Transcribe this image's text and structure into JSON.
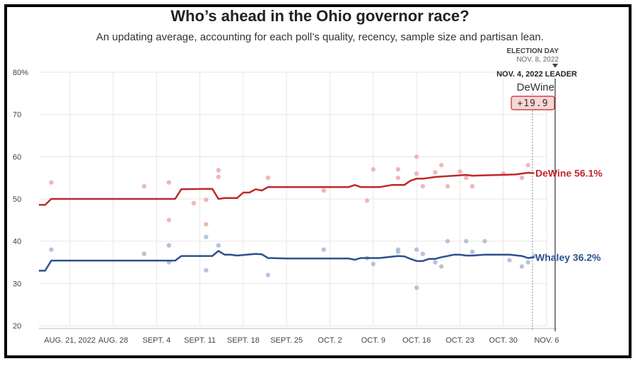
{
  "header": {
    "title": "Who’s ahead in the Ohio governor race?",
    "subtitle": "An updating average, accounting for each poll’s quality, recency, sample size and partisan lean."
  },
  "chart_data": {
    "type": "line",
    "title": "Who’s ahead in the Ohio governor race?",
    "subtitle": "An updating average, accounting for each poll’s quality, recency, sample size and partisan lean.",
    "x_unit": "days since Aug 16, 2022",
    "xlim": [
      0,
      82
    ],
    "ylim": [
      20,
      80
    ],
    "y_ticks": [
      20,
      30,
      40,
      50,
      60,
      70,
      80
    ],
    "y_tick_labels": [
      "20",
      "30",
      "40",
      "50",
      "60",
      "70",
      "80%"
    ],
    "x_ticks": [
      {
        "day": 5,
        "label": "AUG. 21, 2022"
      },
      {
        "day": 12,
        "label": "AUG. 28"
      },
      {
        "day": 19,
        "label": "SEPT. 4"
      },
      {
        "day": 26,
        "label": "SEPT. 11"
      },
      {
        "day": 33,
        "label": "SEPT. 18"
      },
      {
        "day": 40,
        "label": "SEPT. 25"
      },
      {
        "day": 47,
        "label": "OCT. 2"
      },
      {
        "day": 54,
        "label": "OCT. 9"
      },
      {
        "day": 61,
        "label": "OCT. 16"
      },
      {
        "day": 68,
        "label": "OCT. 23"
      },
      {
        "day": 75,
        "label": "OCT. 30"
      },
      {
        "day": 82,
        "label": "NOV. 6"
      }
    ],
    "grid": true,
    "election_day": {
      "day": 84,
      "title": "ELECTION DAY",
      "date": "NOV. 8, 2022"
    },
    "leader_box": {
      "day": 80,
      "heading": "NOV. 4, 2022 LEADER",
      "name": "DeWine",
      "margin": "+19.9"
    },
    "series": [
      {
        "name": "DeWine",
        "end_label": "DeWine 56.1%",
        "color": "#c0272d",
        "dot_color": "#eeaaaa",
        "x": [
          0,
          1,
          2,
          22,
          23,
          28,
          29,
          30,
          32,
          33,
          34,
          35,
          36,
          37,
          38,
          40,
          50,
          51,
          52,
          55,
          57,
          58,
          59,
          60,
          61,
          62,
          63,
          64,
          65,
          67,
          69,
          70,
          72,
          75,
          77,
          79,
          80
        ],
        "values": [
          48.6,
          48.6,
          50.0,
          50.0,
          52.3,
          52.4,
          50.0,
          50.2,
          50.2,
          51.5,
          51.5,
          52.3,
          52.0,
          52.8,
          52.8,
          52.8,
          52.8,
          53.3,
          52.8,
          52.8,
          53.3,
          53.3,
          53.3,
          54.3,
          54.8,
          54.8,
          55.0,
          55.2,
          55.3,
          55.5,
          55.7,
          55.5,
          55.6,
          55.7,
          55.8,
          56.2,
          56.1
        ]
      },
      {
        "name": "Whaley",
        "end_label": "Whaley 36.2%",
        "color": "#2e4f8f",
        "dot_color": "#aab8d8",
        "x": [
          0,
          1,
          2,
          22,
          23,
          28,
          29,
          30,
          31,
          32,
          35,
          36,
          37,
          40,
          50,
          51,
          52,
          55,
          58,
          59,
          60,
          61,
          62,
          63,
          64,
          65,
          66,
          67,
          68,
          69,
          70,
          72,
          76,
          78,
          79,
          80
        ],
        "values": [
          33.0,
          33.0,
          35.4,
          35.4,
          36.5,
          36.5,
          37.7,
          36.8,
          36.8,
          36.6,
          37.0,
          36.9,
          36.0,
          35.9,
          35.9,
          35.6,
          36.0,
          36.0,
          36.5,
          36.4,
          35.8,
          35.3,
          35.3,
          35.8,
          35.8,
          36.2,
          36.5,
          36.8,
          36.8,
          36.6,
          36.6,
          36.8,
          36.8,
          36.5,
          36.0,
          36.2
        ]
      }
    ],
    "polls": {
      "DeWine": [
        [
          2,
          53.9
        ],
        [
          17,
          53.0
        ],
        [
          21,
          53.9
        ],
        [
          21,
          45.0
        ],
        [
          25,
          49.0
        ],
        [
          27,
          44.0
        ],
        [
          27,
          49.8
        ],
        [
          29,
          56.8
        ],
        [
          29,
          55.2
        ],
        [
          37,
          55.0
        ],
        [
          46,
          52.0
        ],
        [
          53,
          49.6
        ],
        [
          54,
          57.0
        ],
        [
          58,
          57.0
        ],
        [
          58,
          55.0
        ],
        [
          61,
          60.0
        ],
        [
          61,
          56.0
        ],
        [
          62,
          53.0
        ],
        [
          64,
          56.3
        ],
        [
          65,
          58.0
        ],
        [
          66,
          53.0
        ],
        [
          68,
          56.5
        ],
        [
          69,
          55.0
        ],
        [
          70,
          53.0
        ],
        [
          75,
          56.0
        ],
        [
          78,
          55.0
        ],
        [
          79,
          58.0
        ]
      ],
      "Whaley": [
        [
          2,
          38.0
        ],
        [
          17,
          37.0
        ],
        [
          21,
          39.0
        ],
        [
          21,
          35.0
        ],
        [
          27,
          41.0
        ],
        [
          27,
          33.1
        ],
        [
          29,
          39.0
        ],
        [
          37,
          32.0
        ],
        [
          46,
          38.0
        ],
        [
          53,
          36.0
        ],
        [
          54,
          34.6
        ],
        [
          58,
          38.0
        ],
        [
          58,
          37.5
        ],
        [
          61,
          38.0
        ],
        [
          61,
          29.0
        ],
        [
          62,
          37.0
        ],
        [
          64,
          35.0
        ],
        [
          65,
          34.0
        ],
        [
          66,
          40.0
        ],
        [
          69,
          40.0
        ],
        [
          70,
          37.5
        ],
        [
          72,
          40.0
        ],
        [
          76,
          35.5
        ],
        [
          78,
          34.0
        ],
        [
          79,
          35.0
        ],
        [
          80,
          36.5
        ]
      ]
    }
  }
}
